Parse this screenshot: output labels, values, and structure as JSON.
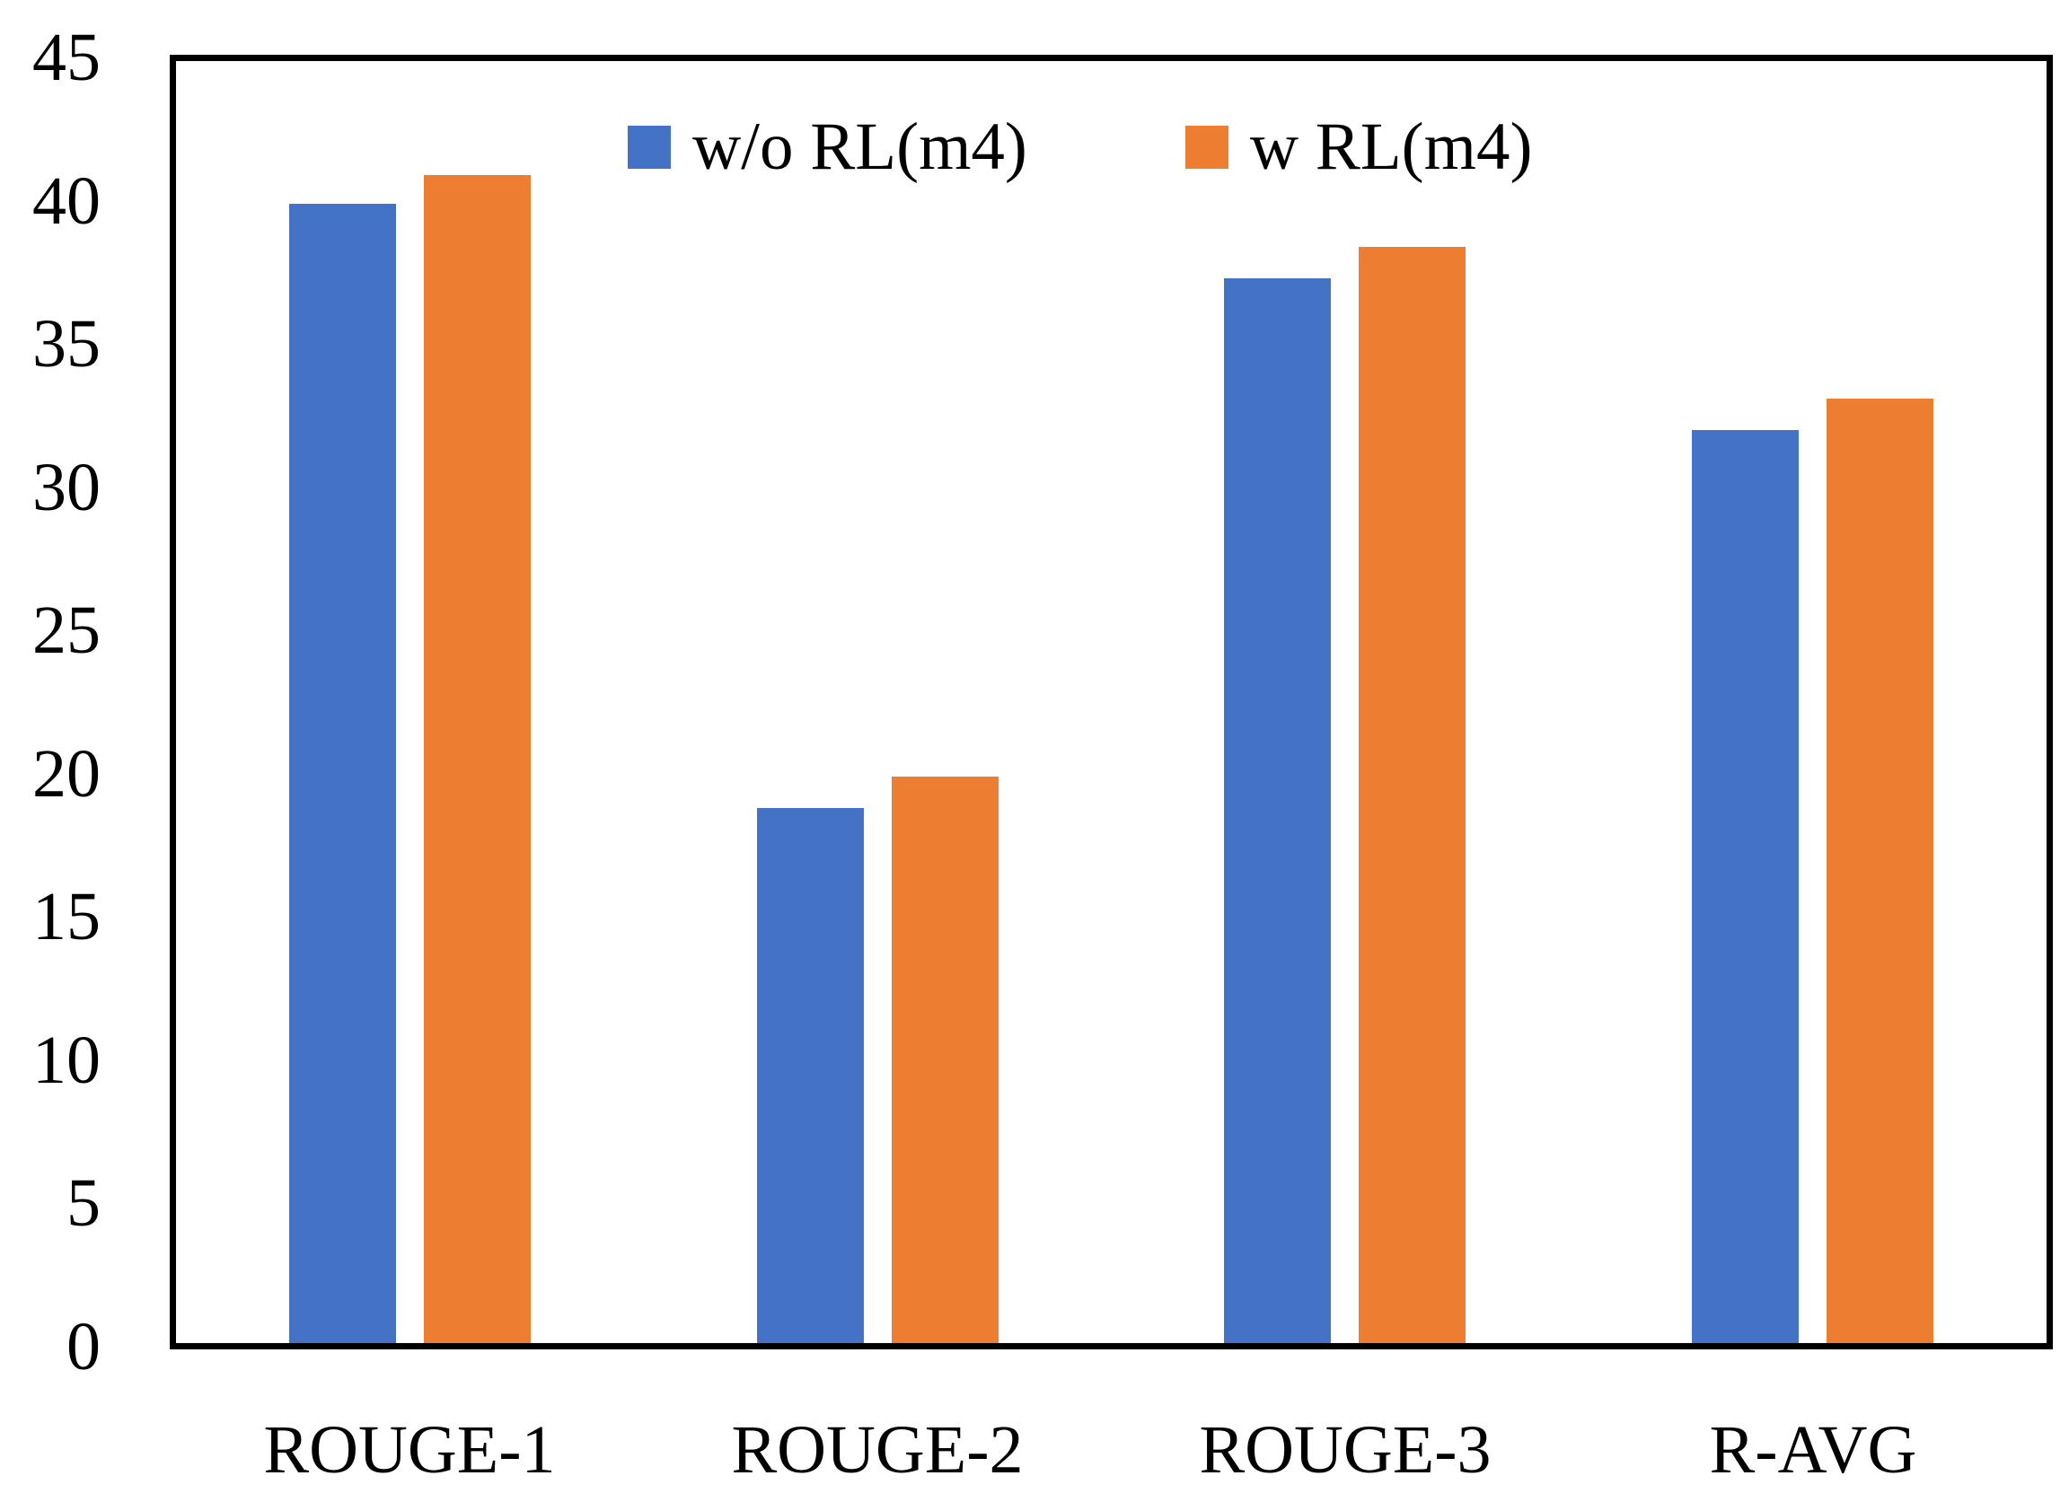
{
  "chart_data": {
    "type": "bar",
    "title": "",
    "xlabel": "",
    "ylabel": "",
    "categories": [
      "ROUGE-1",
      "ROUGE-2",
      "ROUGE-3",
      "R-AVG"
    ],
    "series": [
      {
        "name": "w/o RL(m4)",
        "color": "#4472C4",
        "values": [
          39.9,
          18.8,
          37.3,
          32.0
        ]
      },
      {
        "name": "w RL(m4)",
        "color": "#ED7D31",
        "values": [
          40.9,
          19.9,
          38.4,
          33.1
        ]
      }
    ],
    "ylim": [
      0,
      45
    ],
    "yticks": [
      0,
      5,
      10,
      15,
      20,
      25,
      30,
      35,
      40,
      45
    ],
    "grid": false,
    "legend_position": "top-center",
    "plot_border_color": "#000000",
    "background_color": "#FFFFFF",
    "text_color": "#000000"
  }
}
